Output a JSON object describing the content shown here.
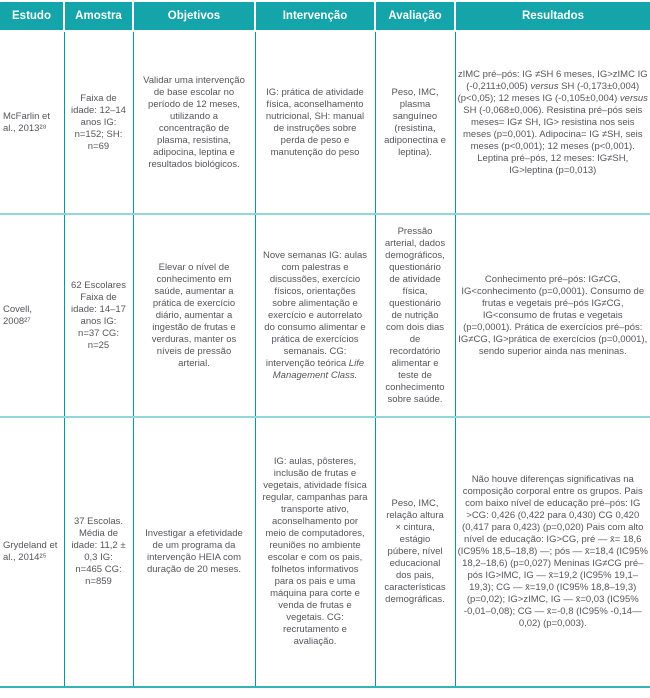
{
  "colors": {
    "header_bg": "#14a5ab",
    "header_text": "#ffffff",
    "body_text": "#55565a",
    "column_border": "#0099a2",
    "row_divider": "#93d5d8",
    "bottom_border": "#35b3b9"
  },
  "table": {
    "headers": [
      "Estudo",
      "Amostra",
      "Objetivos",
      "Intervenção",
      "Avaliação",
      "Resultados"
    ],
    "rows": [
      {
        "estudo": "McFarlin et al., 2013²⁸",
        "amostra": "Faixa de idade: 12–14 anos IG: n=152; SH: n=69",
        "objetivos": "Validar uma intervenção de base escolar no período de 12 meses, utilizando a concentração de plasma, resistina, adipocina, leptina e resultados biológicos.",
        "intervencao": "IG: prática de atividade física, aconselhamento nutricional, SH: manual de instruções sobre perda de peso e manutenção do peso",
        "avaliacao": "Peso, IMC, plasma sanguíneo (resistina, adiponectina e leptina).",
        "resultados": "zIMC pré–pós: IG ≠SH 6 meses, IG>zIMC IG (-0,211±0,005) _versus_ SH (-0,173±0,004) (p<0,05); 12 meses IG (-0,105±0,004) _versus_ SH (-0,068±0,006). Resistina pré–pós seis meses= IG≠ SH, IG> resistina nos seis meses (p=0,001). Adipocina= IG ≠SH, seis meses (p<0,001); 12 meses (p<0,001). Leptina pré–pós, 12 meses: IG≠SH, IG>leptina (p=0,013)"
      },
      {
        "estudo": "Covell, 2008²⁷",
        "amostra": "62 Escolares Faixa de idade: 14–17 anos IG: n=37 CG: n=25",
        "objetivos": "Elevar o nível de conhecimento em saúde, aumentar a prática de exercício diário, aumentar a ingestão de frutas e verduras, manter os níveis de pressão arterial.",
        "intervencao": "Nove semanas IG: aulas com palestras e discussões, exercício físicos, orientações sobre alimentação e exercício e autorrelato do consumo alimentar e prática de exercícios semanais. CG: intervenção teórica _Life Management Class._",
        "avaliacao": "Pressão arterial, dados demográficos, questionário de atividade física, questionário de nutrição com dois dias de recordatório alimentar e teste de conhecimento sobre saúde.",
        "resultados": "Conhecimento pré–pós: IG≠CG, IG<conhecimento (p=0,0001). Consumo de frutas e vegetais pré–pós IG≠CG, IG<consumo de frutas e vegetais (p=0,0001). Prática de exercícios pré–pós: IG≠CG, IG>prática de exercícios (p=0,0001), sendo superior ainda nas meninas."
      },
      {
        "estudo": "Grydeland et al., 2014²⁵",
        "amostra": "37 Escolas. Média de idade: 11,2 ± 0,3 IG: n=465 CG: n=859",
        "objetivos": "Investigar a efetividade de um programa da intervenção HEIA com duração de 20 meses.",
        "intervencao": "IG: aulas, pôsteres, inclusão de frutas e vegetais, atividade física regular, campanhas para transporte ativo, aconselhamento por meio de computadores, reuniões no ambiente escolar e com os pais, folhetos informativos para os pais e uma máquina para corte e venda de frutas e vegetais. CG: recrutamento e avaliação.",
        "avaliacao": "Peso, IMC, relação altura × cintura, estágio púbere, nível educacional dos pais, características demográficas.",
        "resultados": "Não houve diferenças significativas na composição corporal entre os grupos. Pais com baixo nível de educação pré–pós: IG >CG: 0,426 (0,422 para 0,430) CG 0,420 (0,417 para 0,423) (p=0,020) Pais com alto nível de educação: IG>CG, pré — x̄= 18,6 (IC95% 18,5–18,8) —; pós — x̄=18,4 (IC95% 18,2–18,6) (p=0,027) Meninas IG≠CG pré–pós IG>IMC, IG — x̄=19,2 (IC95% 19,1–19,3); CG — x̄=19,0 (IC95% 18,8–19,3) (p=0,02); IG>zIMC, IG — x̄=0,03 (IC95% -0,01–0,08); CG — x̄=-0,8 (IC95% -0,14—0,02) (p=0,003)."
      }
    ]
  }
}
